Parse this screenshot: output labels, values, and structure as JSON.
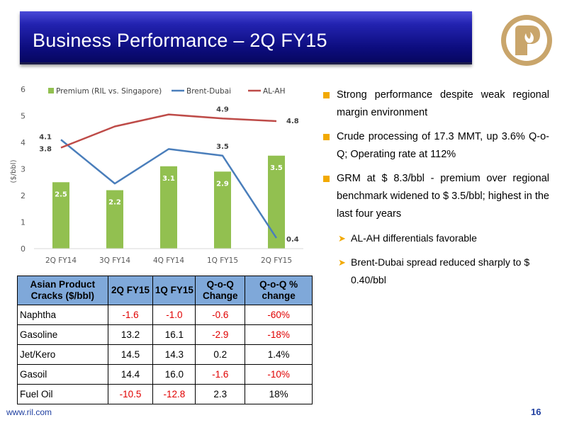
{
  "slide": {
    "title": "Business Performance – 2Q FY15",
    "footer_url": "www.ril.com",
    "page_number": "16"
  },
  "colors": {
    "bar": "#92c050",
    "brent_dubai": "#4a7ebb",
    "al_ah": "#be4b48",
    "bullet": "#f2a900",
    "table_header": "#7fa8d9",
    "negative": "#e00000"
  },
  "chart_data": {
    "type": "bar",
    "categories": [
      "2Q FY14",
      "3Q FY14",
      "4Q FY14",
      "1Q FY15",
      "2Q FY15"
    ],
    "ylabel": "($/bbl)",
    "ylim": [
      0,
      6
    ],
    "yticks": [
      0,
      1,
      2,
      3,
      4,
      5,
      6
    ],
    "legend_position": "top",
    "grid": false,
    "series": [
      {
        "name": "Premium (RIL vs. Singapore)",
        "type": "bar",
        "values": [
          2.5,
          2.2,
          3.1,
          2.9,
          3.5
        ],
        "labels": [
          "2.5",
          "2.2",
          "3.1",
          "2.9",
          "3.5"
        ]
      },
      {
        "name": "Brent-Dubai",
        "type": "line",
        "values": [
          4.1,
          2.45,
          3.75,
          3.5,
          0.4
        ],
        "labels": [
          "4.1",
          "",
          "",
          "3.5",
          "0.4"
        ]
      },
      {
        "name": "AL-AH",
        "type": "line",
        "values": [
          3.8,
          4.6,
          5.05,
          4.9,
          4.8
        ],
        "labels": [
          "3.8",
          "",
          "",
          "4.9",
          "4.8"
        ]
      }
    ]
  },
  "bullets": [
    "Strong performance despite weak regional margin environment",
    "Crude processing of 17.3 MMT, up 3.6% Q-o-Q; Operating rate at 112%",
    "GRM at $ 8.3/bbl - premium over regional benchmark widened to $ 3.5/bbl; highest in the last four years"
  ],
  "sub_bullets": [
    "AL-AH differentials favorable",
    "Brent-Dubai spread reduced sharply to $ 0.40/bbl"
  ],
  "table": {
    "headers": [
      "Asian Product Cracks ($/bbl)",
      "2Q FY15",
      "1Q FY15",
      "Q-o-Q Change",
      "Q-o-Q % change"
    ],
    "rows": [
      [
        "Naphtha",
        "-1.6",
        "-1.0",
        "-0.6",
        "-60%"
      ],
      [
        "Gasoline",
        "13.2",
        "16.1",
        "-2.9",
        "-18%"
      ],
      [
        "Jet/Kero",
        "14.5",
        "14.3",
        "0.2",
        "1.4%"
      ],
      [
        "Gasoil",
        "14.4",
        "16.0",
        "-1.6",
        "-10%"
      ],
      [
        "Fuel Oil",
        "-10.5",
        "-12.8",
        "2.3",
        "18%"
      ]
    ]
  }
}
